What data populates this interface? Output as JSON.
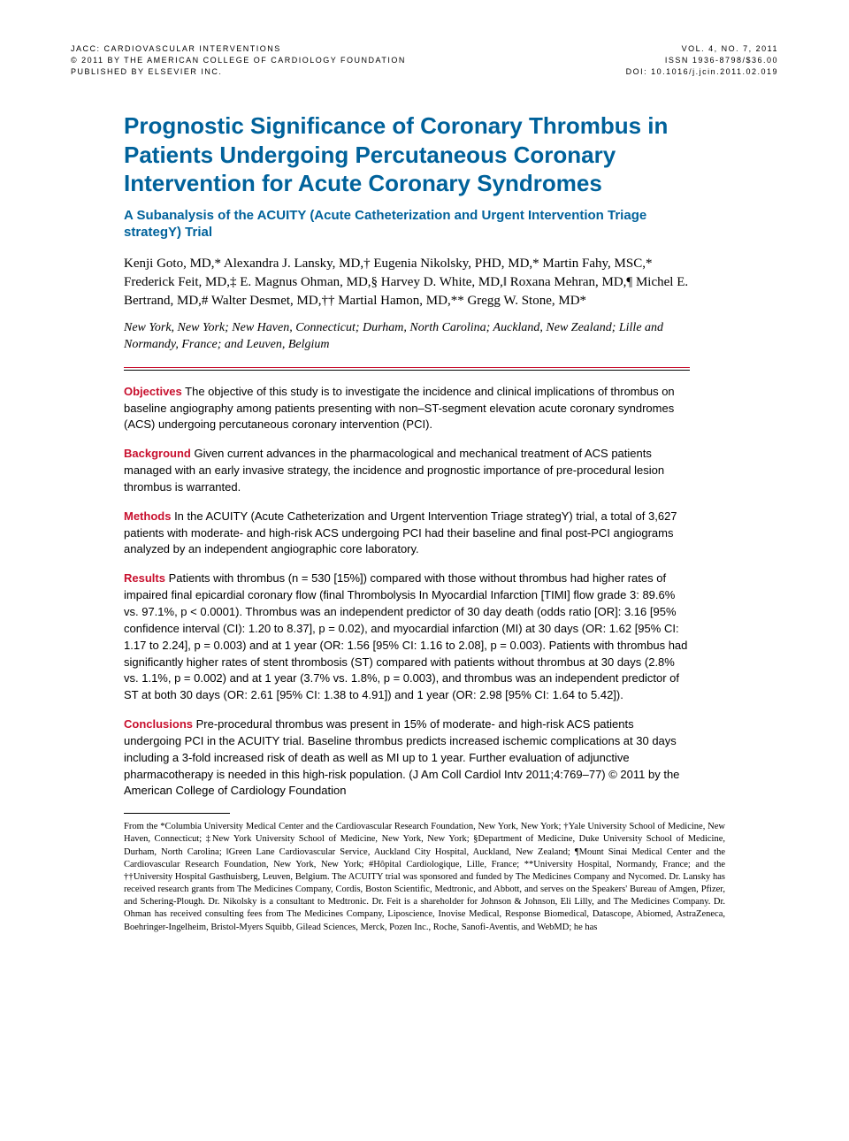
{
  "header": {
    "left1": "JACC: CARDIOVASCULAR INTERVENTIONS",
    "left2": "© 2011 BY THE AMERICAN COLLEGE OF CARDIOLOGY FOUNDATION",
    "left3": "PUBLISHED BY ELSEVIER INC.",
    "right1": "VOL. 4, NO. 7, 2011",
    "right2": "ISSN 1936-8798/$36.00",
    "right3": "DOI: 10.1016/j.jcin.2011.02.019"
  },
  "title": "Prognostic Significance of Coronary Thrombus in Patients Undergoing Percutaneous Coronary Intervention for Acute Coronary Syndromes",
  "subtitle": "A Subanalysis of the ACUITY (Acute Catheterization and Urgent Intervention Triage strategY) Trial",
  "authors": "Kenji Goto, MD,* Alexandra J. Lansky, MD,† Eugenia Nikolsky, PHD, MD,* Martin Fahy, MSC,* Frederick Feit, MD,‡ E. Magnus Ohman, MD,§ Harvey D. White, MD,‖ Roxana Mehran, MD,¶ Michel E. Bertrand, MD,# Walter Desmet, MD,†† Martial Hamon, MD,** Gregg W. Stone, MD*",
  "affiliations": "New York, New York; New Haven, Connecticut; Durham, North Carolina; Auckland, New Zealand; Lille and Normandy, France; and Leuven, Belgium",
  "abstract": {
    "objectives_label": "Objectives",
    "objectives": " The objective of this study is to investigate the incidence and clinical implications of thrombus on baseline angiography among patients presenting with non–ST-segment elevation acute coronary syndromes (ACS) undergoing percutaneous coronary intervention (PCI).",
    "background_label": "Background",
    "background": " Given current advances in the pharmacological and mechanical treatment of ACS patients managed with an early invasive strategy, the incidence and prognostic importance of pre-procedural lesion thrombus is warranted.",
    "methods_label": "Methods",
    "methods": " In the ACUITY (Acute Catheterization and Urgent Intervention Triage strategY) trial, a total of 3,627 patients with moderate- and high-risk ACS undergoing PCI had their baseline and final post-PCI angiograms analyzed by an independent angiographic core laboratory.",
    "results_label": "Results",
    "results": " Patients with thrombus (n = 530 [15%]) compared with those without thrombus had higher rates of impaired final epicardial coronary flow (final Thrombolysis In Myocardial Infarction [TIMI] flow grade 3: 89.6% vs. 97.1%, p < 0.0001). Thrombus was an independent predictor of 30 day death (odds ratio [OR]: 3.16 [95% confidence interval (CI): 1.20 to 8.37], p = 0.02), and myocardial infarction (MI) at 30 days (OR: 1.62 [95% CI: 1.17 to 2.24], p = 0.003) and at 1 year (OR: 1.56 [95% CI: 1.16 to 2.08], p = 0.003). Patients with thrombus had significantly higher rates of stent thrombosis (ST) compared with patients without thrombus at 30 days (2.8% vs. 1.1%, p = 0.002) and at 1 year (3.7% vs. 1.8%, p = 0.003), and thrombus was an independent predictor of ST at both 30 days (OR: 2.61 [95% CI: 1.38 to 4.91]) and 1 year (OR: 2.98 [95% CI: 1.64 to 5.42]).",
    "conclusions_label": "Conclusions",
    "conclusions": " Pre-procedural thrombus was present in 15% of moderate- and high-risk ACS patients undergoing PCI in the ACUITY trial. Baseline thrombus predicts increased ischemic complications at 30 days including a 3-fold increased risk of death as well as MI up to 1 year. Further evaluation of adjunctive pharmacotherapy is needed in this high-risk population.   (J Am Coll Cardiol Intv 2011;4:769–77) © 2011 by the American College of Cardiology Foundation"
  },
  "footer": "From the *Columbia University Medical Center and the Cardiovascular Research Foundation, New York, New York; †Yale University School of Medicine, New Haven, Connecticut; ‡New York University School of Medicine, New York, New York; §Department of Medicine, Duke University School of Medicine, Durham, North Carolina; ‖Green Lane Cardiovascular Service, Auckland City Hospital, Auckland, New Zealand; ¶Mount Sinai Medical Center and the Cardiovascular Research Foundation, New York, New York; #Hôpital Cardiologique, Lille, France; **University Hospital, Normandy, France; and the ††University Hospital Gasthuisberg, Leuven, Belgium. The ACUITY trial was sponsored and funded by The Medicines Company and Nycomed. Dr. Lansky has received research grants from The Medicines Company, Cordis, Boston Scientific, Medtronic, and Abbott, and serves on the Speakers' Bureau of Amgen, Pfizer, and Schering-Plough. Dr. Nikolsky is a consultant to Medtronic. Dr. Feit is a shareholder for Johnson & Johnson, Eli Lilly, and The Medicines Company. Dr. Ohman has received consulting fees from The Medicines Company, Liposcience, Inovise Medical, Response Biomedical, Datascope, Abiomed, AstraZeneca, Boehringer-Ingelheim, Bristol-Myers Squibb, Gilead Sciences, Merck, Pozen Inc., Roche, Sanofi-Aventis, and WebMD; he has"
}
